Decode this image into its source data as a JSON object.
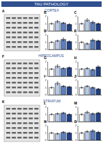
{
  "title": "TAU PATHOLOGY",
  "sections": [
    {
      "name": "CORTEX",
      "blot_label": "A"
    },
    {
      "name": "HIPPOCAMPUS",
      "blot_label": "F"
    },
    {
      "name": "STRIATUM",
      "blot_label": "K"
    }
  ],
  "chart_data": [
    {
      "type": "bar",
      "title": "B",
      "categories": [
        null,
        null,
        null,
        null
      ],
      "values": [
        1.0,
        1.3,
        1.1,
        0.9
      ],
      "errors": [
        0.1,
        0.15,
        0.1,
        0.1
      ],
      "colors": [
        "#ffffff",
        "#b9c9e4",
        "#5b7fc0",
        "#1f3f84"
      ],
      "ylim": [
        0,
        2
      ],
      "yticks": [
        0,
        1,
        2
      ],
      "tick_labels": "y",
      "grid": false
    },
    {
      "type": "bar",
      "title": "C",
      "categories": [
        null,
        null,
        null,
        null
      ],
      "values": [
        1.0,
        1.5,
        1.2,
        1.0
      ],
      "errors": [
        0.1,
        0.2,
        0.15,
        0.1
      ],
      "colors": [
        "#ffffff",
        "#b9c9e4",
        "#5b7fc0",
        "#1f3f84"
      ],
      "ylim": [
        0,
        2
      ],
      "yticks": [
        0,
        1,
        2
      ],
      "tick_labels": "y",
      "grid": false
    },
    {
      "type": "bar",
      "title": "D",
      "categories": [
        null,
        null,
        null,
        null
      ],
      "values": [
        1.0,
        1.2,
        1.4,
        1.1
      ],
      "errors": [
        0.1,
        0.1,
        0.2,
        0.1
      ],
      "colors": [
        "#ffffff",
        "#b9c9e4",
        "#5b7fc0",
        "#1f3f84"
      ],
      "ylim": [
        0,
        2
      ],
      "yticks": [
        0,
        1,
        2
      ],
      "tick_labels": "y",
      "grid": false
    },
    {
      "type": "bar",
      "title": "E",
      "categories": [
        null,
        null,
        null,
        null
      ],
      "values": [
        1.0,
        0.8,
        1.3,
        1.2
      ],
      "errors": [
        0.1,
        0.1,
        0.15,
        0.1
      ],
      "colors": [
        "#ffffff",
        "#b9c9e4",
        "#5b7fc0",
        "#1f3f84"
      ],
      "ylim": [
        0,
        2
      ],
      "yticks": [
        0,
        1,
        2
      ],
      "tick_labels": "y",
      "grid": false
    },
    {
      "type": "bar",
      "title": "G",
      "categories": [
        null,
        null,
        null,
        null
      ],
      "values": [
        1.0,
        1.4,
        1.1,
        1.2
      ],
      "errors": [
        0.1,
        0.2,
        0.1,
        0.1
      ],
      "colors": [
        "#ffffff",
        "#b9c9e4",
        "#5b7fc0",
        "#1f3f84"
      ],
      "ylim": [
        0,
        2
      ],
      "yticks": [
        0,
        1,
        2
      ],
      "tick_labels": "y",
      "grid": false
    },
    {
      "type": "bar",
      "title": "H",
      "categories": [
        null,
        null,
        null,
        null
      ],
      "values": [
        1.0,
        1.1,
        0.9,
        1.3
      ],
      "errors": [
        0.1,
        0.1,
        0.1,
        0.15
      ],
      "colors": [
        "#ffffff",
        "#b9c9e4",
        "#5b7fc0",
        "#1f3f84"
      ],
      "ylim": [
        0,
        2
      ],
      "yticks": [
        0,
        1,
        2
      ],
      "tick_labels": "y",
      "grid": false
    },
    {
      "type": "bar",
      "title": "I",
      "categories": [
        null,
        null,
        null,
        null
      ],
      "values": [
        1.0,
        1.6,
        1.2,
        1.1
      ],
      "errors": [
        0.1,
        0.2,
        0.1,
        0.1
      ],
      "colors": [
        "#ffffff",
        "#b9c9e4",
        "#5b7fc0",
        "#1f3f84"
      ],
      "ylim": [
        0,
        2
      ],
      "yticks": [
        0,
        1,
        2
      ],
      "tick_labels": "y",
      "grid": false
    },
    {
      "type": "bar",
      "title": "J",
      "categories": [
        null,
        null,
        null,
        null
      ],
      "values": [
        1.0,
        1.2,
        1.0,
        0.8
      ],
      "errors": [
        0.1,
        0.1,
        0.1,
        0.1
      ],
      "colors": [
        "#ffffff",
        "#b9c9e4",
        "#5b7fc0",
        "#1f3f84"
      ],
      "ylim": [
        0,
        2
      ],
      "yticks": [
        0,
        1,
        2
      ],
      "tick_labels": "y",
      "grid": false
    },
    {
      "type": "bar",
      "title": "L",
      "categories": [
        null,
        null,
        null,
        null
      ],
      "values": [
        1.0,
        1.1,
        1.2,
        1.0
      ],
      "errors": [
        0.1,
        0.1,
        0.1,
        0.1
      ],
      "colors": [
        "#ffffff",
        "#b9c9e4",
        "#5b7fc0",
        "#1f3f84"
      ],
      "ylim": [
        0,
        2
      ],
      "yticks": [
        0,
        1,
        2
      ],
      "tick_labels": "y",
      "grid": false
    },
    {
      "type": "bar",
      "title": "M",
      "categories": [
        null,
        null,
        null,
        null
      ],
      "values": [
        1.0,
        1.3,
        1.1,
        1.2
      ],
      "errors": [
        0.1,
        0.15,
        0.1,
        0.1
      ],
      "colors": [
        "#ffffff",
        "#b9c9e4",
        "#5b7fc0",
        "#1f3f84"
      ],
      "ylim": [
        0,
        2
      ],
      "yticks": [
        0,
        1,
        2
      ],
      "tick_labels": "y",
      "grid": false
    },
    {
      "type": "bar",
      "title": "N",
      "categories": [
        null,
        null,
        null,
        null
      ],
      "values": [
        1.0,
        0.9,
        1.1,
        1.0
      ],
      "errors": [
        0.1,
        0.1,
        0.1,
        0.1
      ],
      "colors": [
        "#ffffff",
        "#b9c9e4",
        "#5b7fc0",
        "#1f3f84"
      ],
      "ylim": [
        0,
        2
      ],
      "yticks": [
        0,
        1,
        2
      ],
      "tick_labels": "y",
      "grid": false
    },
    {
      "type": "bar",
      "title": "O",
      "categories": [
        null,
        null,
        null,
        null
      ],
      "values": [
        1.0,
        1.2,
        1.3,
        1.1
      ],
      "errors": [
        0.1,
        0.1,
        0.15,
        0.1
      ],
      "colors": [
        "#ffffff",
        "#b9c9e4",
        "#5b7fc0",
        "#1f3f84"
      ],
      "ylim": [
        0,
        2
      ],
      "yticks": [
        0,
        1,
        2
      ],
      "tick_labels": "y",
      "grid": false
    }
  ]
}
